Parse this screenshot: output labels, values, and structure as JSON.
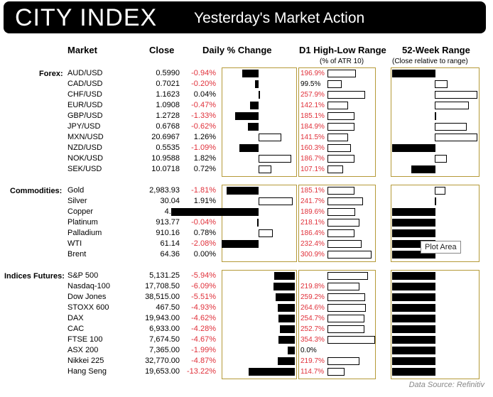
{
  "header": {
    "logo": "CITY INDEX",
    "title": "Yesterday's Market Action"
  },
  "columns": {
    "market": "Market",
    "close": "Close",
    "daily": "Daily % Change",
    "range": "D1 High-Low Range",
    "range_sub": "(% of ATR 10)",
    "week52": "52-Week Range",
    "week52_sub": "(Close relative to range)"
  },
  "tooltip": "Plot Area",
  "source": "Data Source: Refinitiv",
  "colors": {
    "negative": "#e0303a",
    "positive": "#000000",
    "panel_border": "#b59a38",
    "header_bg": "#000000"
  },
  "chart_data": {
    "type": "table",
    "groups": [
      {
        "name": "Forex:",
        "rows": [
          {
            "market": "AUD/USD",
            "close": "0.5990",
            "pct": "-0.94%",
            "pct_v": -0.94,
            "range": "196.9%",
            "range_v": 196.9,
            "w52": 0.0
          },
          {
            "market": "CAD/USD",
            "close": "0.7021",
            "pct": "-0.20%",
            "pct_v": -0.2,
            "range": "99.5%",
            "range_v": 99.5,
            "w52": 0.3
          },
          {
            "market": "CHF/USD",
            "close": "1.1623",
            "pct": "0.04%",
            "pct_v": 0.04,
            "range": "257.9%",
            "range_v": 257.9,
            "w52": 1.0
          },
          {
            "market": "EUR/USD",
            "close": "1.0908",
            "pct": "-0.47%",
            "pct_v": -0.47,
            "range": "142.1%",
            "range_v": 142.1,
            "w52": 0.8
          },
          {
            "market": "GBP/USD",
            "close": "1.2728",
            "pct": "-1.33%",
            "pct_v": -1.33,
            "range": "185.1%",
            "range_v": 185.1,
            "w52": 0.01
          },
          {
            "market": "JPY/USD",
            "close": "0.6768",
            "pct": "-0.62%",
            "pct_v": -0.62,
            "range": "184.9%",
            "range_v": 184.9,
            "w52": 0.75
          },
          {
            "market": "MXN/USD",
            "close": "20.6967",
            "pct": "1.26%",
            "pct_v": 1.26,
            "range": "141.5%",
            "range_v": 141.5,
            "w52": 1.0
          },
          {
            "market": "NZD/USD",
            "close": "0.5535",
            "pct": "-1.09%",
            "pct_v": -1.09,
            "range": "160.3%",
            "range_v": 160.3,
            "w52": -1.0
          },
          {
            "market": "NOK/USD",
            "close": "10.9588",
            "pct": "1.82%",
            "pct_v": 1.82,
            "range": "186.7%",
            "range_v": 186.7,
            "w52": 0.28
          },
          {
            "market": "SEK/USD",
            "close": "10.0718",
            "pct": "0.72%",
            "pct_v": 0.72,
            "range": "107.1%",
            "range_v": 107.1,
            "w52": -0.55
          }
        ]
      },
      {
        "name": "Commodities:",
        "rows": [
          {
            "market": "Gold",
            "close": "2,983.93",
            "pct": "-1.81%",
            "pct_v": -1.81,
            "range": "185.1%",
            "range_v": 185.1,
            "w52": 0.25
          },
          {
            "market": "Silver",
            "close": "30.04",
            "pct": "1.91%",
            "pct_v": 1.91,
            "range": "241.7%",
            "range_v": 241.7,
            "w52": 0.0
          },
          {
            "market": "Copper",
            "close": "4.17",
            "pct": "-4.92%",
            "pct_v": -4.92,
            "range": "189.6%",
            "range_v": 189.6,
            "w52": -1.0
          },
          {
            "market": "Platinum",
            "close": "913.77",
            "pct": "-0.04%",
            "pct_v": -0.04,
            "range": "218.1%",
            "range_v": 218.1,
            "w52": -1.0
          },
          {
            "market": "Palladium",
            "close": "910.16",
            "pct": "0.78%",
            "pct_v": 0.78,
            "range": "186.4%",
            "range_v": 186.4,
            "w52": -1.0
          },
          {
            "market": "WTI",
            "close": "61.14",
            "pct": "-2.08%",
            "pct_v": -2.08,
            "range": "232.4%",
            "range_v": 232.4,
            "w52": -1.0
          },
          {
            "market": "Brent",
            "close": "64.36",
            "pct": "0.00%",
            "pct_v": 0.0,
            "range": "300.9%",
            "range_v": 300.9,
            "w52": -1.0
          }
        ]
      },
      {
        "name": "Indices Futures:",
        "rows": [
          {
            "market": "S&P 500",
            "close": "5,131.25",
            "pct": "-5.94%",
            "pct_v": -5.94,
            "range": "",
            "range_v": 277.0,
            "w52": -1.0
          },
          {
            "market": "Nasdaq-100",
            "close": "17,708.50",
            "pct": "-6.09%",
            "pct_v": -6.09,
            "range": "219.8%",
            "range_v": 219.8,
            "w52": -1.0
          },
          {
            "market": "Dow Jones",
            "close": "38,515.00",
            "pct": "-5.51%",
            "pct_v": -5.51,
            "range": "259.2%",
            "range_v": 259.2,
            "w52": -1.0
          },
          {
            "market": "STOXX 600",
            "close": "467.50",
            "pct": "-4.93%",
            "pct_v": -4.93,
            "range": "264.6%",
            "range_v": 264.6,
            "w52": -1.0
          },
          {
            "market": "DAX",
            "close": "19,943.00",
            "pct": "-4.62%",
            "pct_v": -4.62,
            "range": "254.7%",
            "range_v": 254.7,
            "w52": -1.0
          },
          {
            "market": "CAC",
            "close": "6,933.00",
            "pct": "-4.28%",
            "pct_v": -4.28,
            "range": "252.7%",
            "range_v": 252.7,
            "w52": -1.0
          },
          {
            "market": "FTSE 100",
            "close": "7,674.50",
            "pct": "-4.67%",
            "pct_v": -4.67,
            "range": "354.3%",
            "range_v": 354.3,
            "w52": -1.0
          },
          {
            "market": "ASX 200",
            "close": "7,365.00",
            "pct": "-1.99%",
            "pct_v": -1.99,
            "range": "0.0%",
            "range_v": 0.0,
            "w52": -1.0
          },
          {
            "market": "Nikkei 225",
            "close": "32,770.00",
            "pct": "-4.87%",
            "pct_v": -4.87,
            "range": "219.7%",
            "range_v": 219.7,
            "w52": -1.0
          },
          {
            "market": "Hang Seng",
            "close": "19,653.00",
            "pct": "-13.22%",
            "pct_v": -13.22,
            "range": "114.7%",
            "range_v": 114.7,
            "w52": -1.0
          }
        ]
      }
    ]
  }
}
